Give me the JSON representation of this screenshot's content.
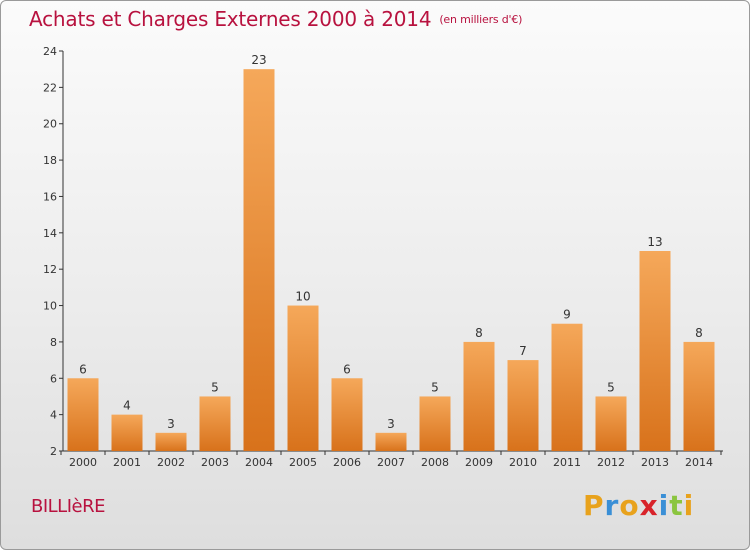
{
  "title": "Achats et Charges Externes 2000 à 2014",
  "subtitle": "(en milliers d'€)",
  "town": "BILLIèRE",
  "brand": {
    "letters": [
      "P",
      "r",
      "o",
      "x",
      "i",
      "t",
      "i"
    ],
    "colors": [
      "#e8a21c",
      "#3a8fd6",
      "#e8a21c",
      "#d8232a",
      "#3a8fd6",
      "#8bc53f",
      "#e8a21c"
    ]
  },
  "colors": {
    "title": "#b8123f",
    "bar_light": "#f5a85a",
    "bar_dark": "#d8721b",
    "axis": "#333333"
  },
  "chart_data": {
    "type": "bar",
    "categories": [
      "2000",
      "2001",
      "2002",
      "2003",
      "2004",
      "2005",
      "2006",
      "2007",
      "2008",
      "2009",
      "2010",
      "2011",
      "2012",
      "2013",
      "2014"
    ],
    "values": [
      6,
      4,
      3,
      5,
      23,
      10,
      6,
      3,
      5,
      8,
      7,
      9,
      5,
      13,
      8
    ],
    "title": "Achats et Charges Externes 2000 à 2014",
    "subtitle": "(en milliers d'€)",
    "xlabel": "",
    "ylabel": "",
    "ylim": [
      2,
      24
    ],
    "yticks": [
      2,
      4,
      6,
      8,
      10,
      12,
      14,
      16,
      18,
      20,
      22,
      24
    ],
    "grid": false,
    "legend": "none"
  }
}
